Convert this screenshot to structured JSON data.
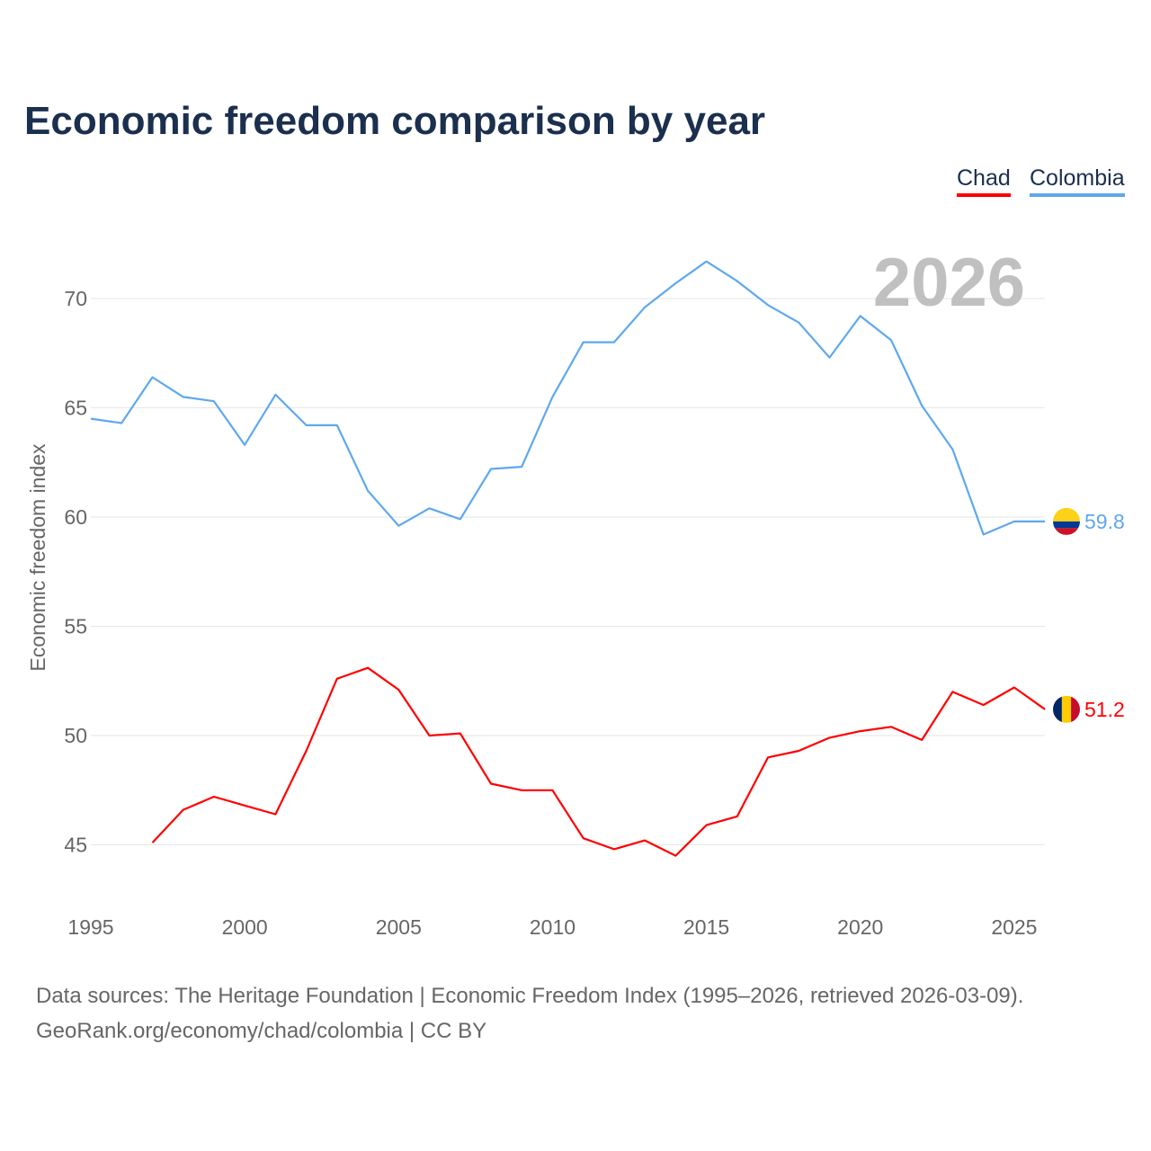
{
  "chart_data": {
    "type": "line",
    "title": "Economic freedom comparison by year",
    "xlabel": "",
    "ylabel": "Economic freedom index",
    "xlim": [
      1995,
      2026
    ],
    "ylim": [
      42,
      73
    ],
    "x_ticks": [
      "1995",
      "2000",
      "2005",
      "2010",
      "2015",
      "2020",
      "2025"
    ],
    "y_ticks": [
      "45",
      "50",
      "55",
      "60",
      "65",
      "70"
    ],
    "grid": true,
    "legend_placement": "top-right",
    "year_label": "2026",
    "series": [
      {
        "name": "Chad",
        "color": "#ff0000",
        "end_label": "51.2",
        "x": [
          1997,
          1998,
          1999,
          2000,
          2001,
          2002,
          2003,
          2004,
          2005,
          2006,
          2007,
          2008,
          2009,
          2010,
          2011,
          2012,
          2013,
          2014,
          2015,
          2016,
          2017,
          2018,
          2019,
          2020,
          2021,
          2022,
          2023,
          2024,
          2025,
          2026
        ],
        "values": [
          45.1,
          46.6,
          47.2,
          46.8,
          46.4,
          49.3,
          52.6,
          53.1,
          52.1,
          50.0,
          50.1,
          47.8,
          47.5,
          47.5,
          45.3,
          44.8,
          45.2,
          44.5,
          45.9,
          46.3,
          49.0,
          49.3,
          49.9,
          50.2,
          50.4,
          49.8,
          52.0,
          51.4,
          52.2,
          51.2
        ]
      },
      {
        "name": "Colombia",
        "color": "#5ea8ee",
        "end_label": "59.8",
        "x": [
          1995,
          1996,
          1997,
          1998,
          1999,
          2000,
          2001,
          2002,
          2003,
          2004,
          2005,
          2006,
          2007,
          2008,
          2009,
          2010,
          2011,
          2012,
          2013,
          2014,
          2015,
          2016,
          2017,
          2018,
          2019,
          2020,
          2021,
          2022,
          2023,
          2024,
          2025,
          2026
        ],
        "values": [
          64.5,
          64.3,
          66.4,
          65.5,
          65.3,
          63.3,
          65.6,
          64.2,
          64.2,
          61.2,
          59.6,
          60.4,
          59.9,
          62.2,
          62.3,
          65.5,
          68.0,
          68.0,
          69.6,
          70.7,
          71.7,
          70.8,
          69.7,
          68.9,
          67.3,
          69.2,
          68.1,
          65.1,
          63.1,
          59.2,
          59.8,
          59.8
        ]
      }
    ]
  },
  "source_line1": "Data sources: The Heritage Foundation | Economic Freedom Index (1995–2026, retrieved 2026-03-09).",
  "source_line2": "GeoRank.org/economy/chad/colombia | CC BY"
}
